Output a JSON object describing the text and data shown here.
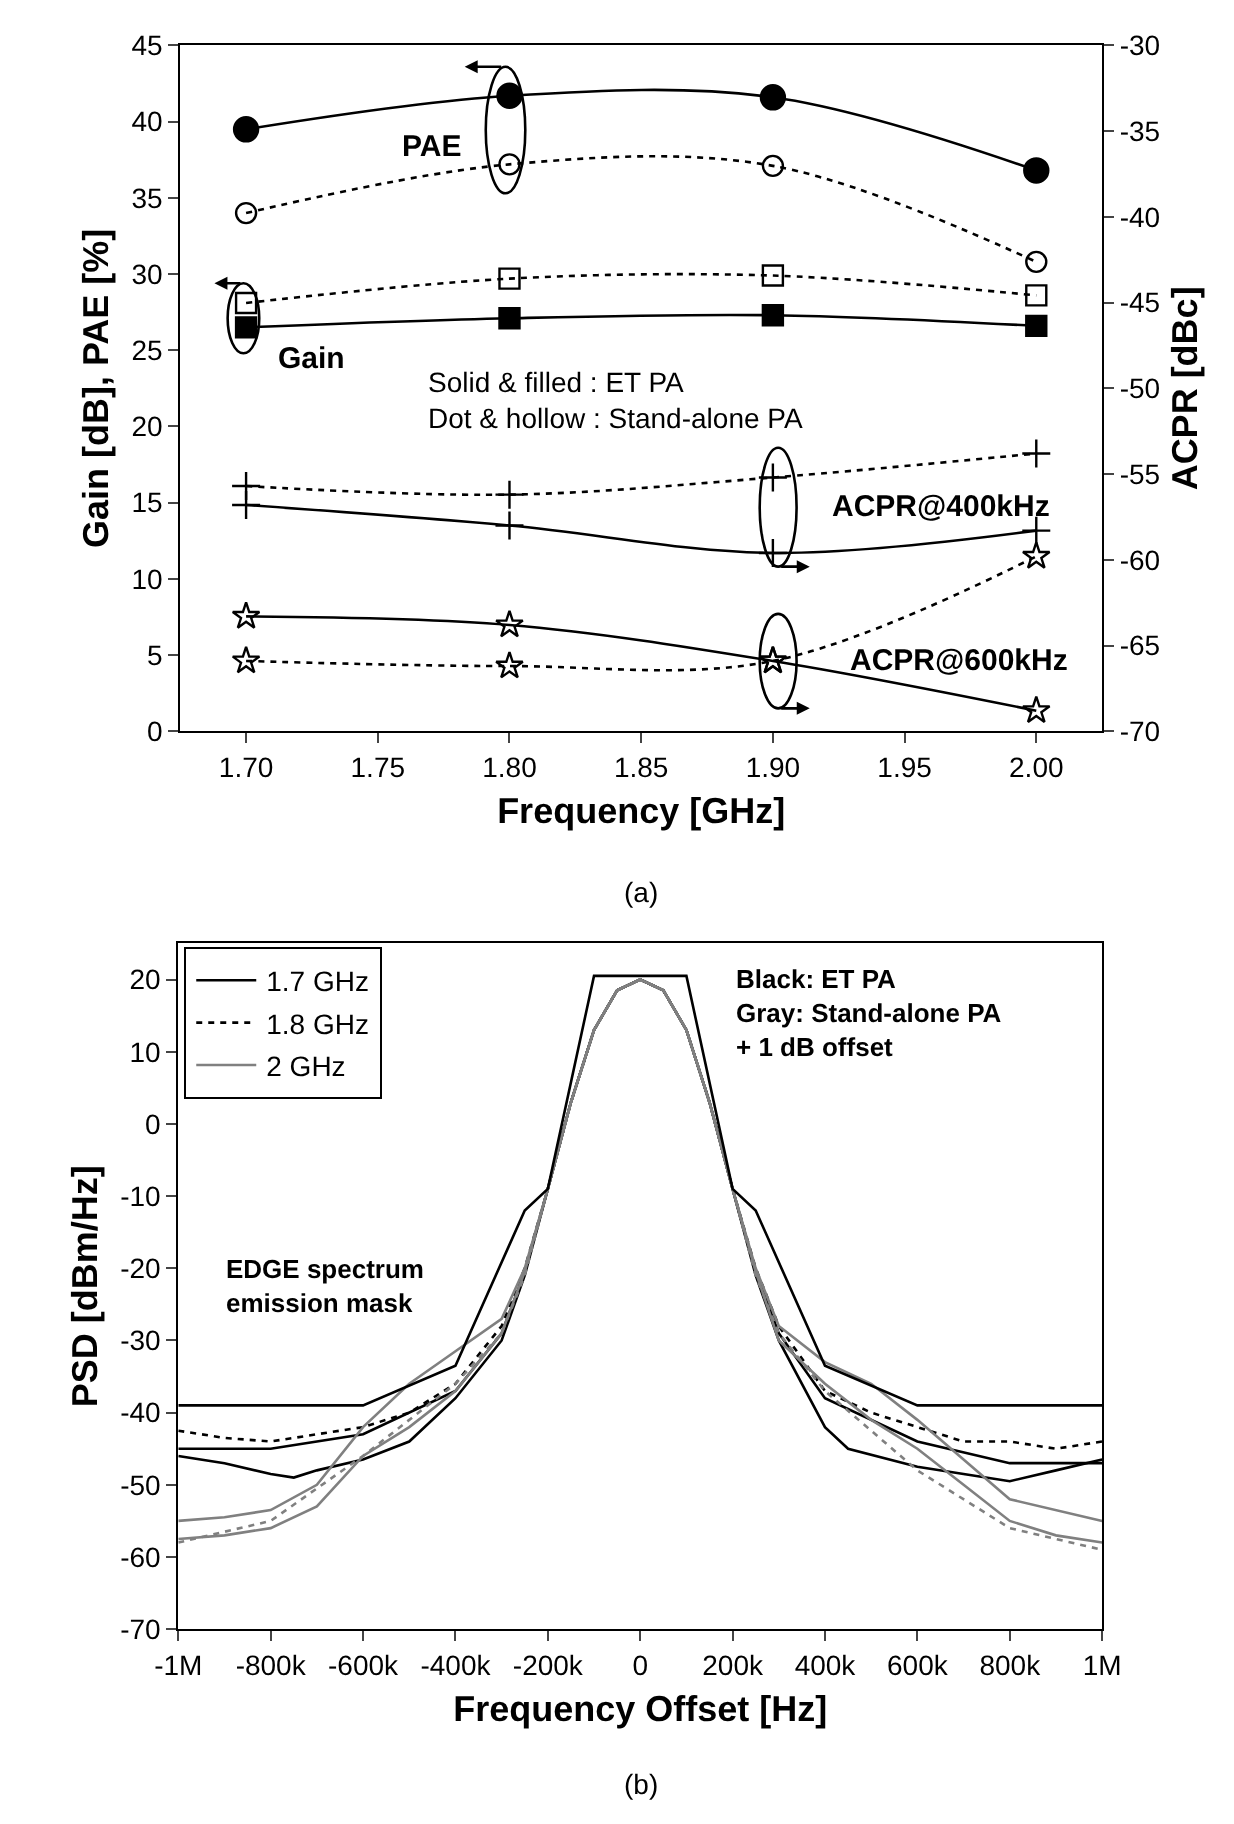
{
  "chart_data": [
    {
      "type": "line",
      "xlabel": "Frequency [GHz]",
      "ylabel": "Gain [dB], PAE [%]",
      "y2label": "ACPR [dBc]",
      "x": [
        1.7,
        1.8,
        1.9,
        2.0
      ],
      "xlim": [
        1.675,
        2.025
      ],
      "xticks": [
        {
          "value": 1.7,
          "label": "1.70"
        },
        {
          "value": 1.75,
          "label": "1.75"
        },
        {
          "value": 1.8,
          "label": "1.80"
        },
        {
          "value": 1.85,
          "label": "1.85"
        },
        {
          "value": 1.9,
          "label": "1.90"
        },
        {
          "value": 1.95,
          "label": "1.95"
        },
        {
          "value": 2.0,
          "label": "2.00"
        }
      ],
      "ylim": [
        0,
        45
      ],
      "yticks": [
        0,
        5,
        10,
        15,
        20,
        25,
        30,
        35,
        40,
        45
      ],
      "y2lim": [
        -70,
        -30
      ],
      "y2ticks": [
        -70,
        -65,
        -60,
        -55,
        -50,
        -45,
        -40,
        -35,
        -30
      ],
      "legend": false,
      "series": [
        {
          "color": "#000000",
          "values": [
            39.5,
            41.7,
            41.6,
            36.8
          ],
          "marker": "circle",
          "line_style": "solid"
        },
        {
          "color": "#000000",
          "values": [
            34.0,
            37.2,
            37.1,
            30.8
          ],
          "marker": "circle",
          "line_style": "dotted"
        },
        {
          "color": "#000000",
          "values": [
            28.1,
            29.7,
            29.9,
            28.6
          ],
          "marker": "square",
          "line_style": "dotted"
        },
        {
          "color": "#000000",
          "values": [
            26.5,
            27.1,
            27.3,
            26.6
          ],
          "marker": "square",
          "line_style": "solid"
        },
        {
          "color": "#000000",
          "values": [
            -55.7,
            -56.2,
            -55.2,
            -53.8
          ],
          "marker": "cross",
          "line_style": "dotted",
          "axis": "y2"
        },
        {
          "color": "#000000",
          "values": [
            -56.8,
            -58.0,
            -59.6,
            -58.3
          ],
          "marker": "cross",
          "line_style": "solid",
          "axis": "y2"
        },
        {
          "color": "#000000",
          "values": [
            -63.3,
            -63.8,
            -65.9,
            -68.8
          ],
          "marker": "star",
          "line_style": "solid",
          "axis": "y2"
        },
        {
          "color": "#000000",
          "values": [
            -65.9,
            -66.2,
            -65.9,
            -59.8
          ],
          "marker": "star",
          "line_style": "dotted",
          "axis": "y2"
        }
      ],
      "annotations": [
        "PAE",
        "Gain",
        "Solid & filled : ET PA\nDot & hollow : Stand-alone PA",
        "ACPR@400kHz",
        "ACPR@600kHz",
        "(a)"
      ]
    },
    {
      "type": "line",
      "xlabel": "Frequency Offset [Hz]",
      "ylabel": "PSD [dBm/Hz]",
      "xlim": [
        -1000000,
        1000000
      ],
      "xticks": [
        {
          "value": -1000000,
          "label": "-1M"
        },
        {
          "value": -800000,
          "label": "-800k"
        },
        {
          "value": -600000,
          "label": "-600k"
        },
        {
          "value": -400000,
          "label": "-400k"
        },
        {
          "value": -200000,
          "label": "-200k"
        },
        0,
        {
          "value": 200000,
          "label": "200k"
        },
        {
          "value": 400000,
          "label": "400k"
        },
        {
          "value": 600000,
          "label": "600k"
        },
        {
          "value": 800000,
          "label": "800k"
        },
        {
          "value": 1000000,
          "label": "1M"
        }
      ],
      "ylim": [
        -70,
        25
      ],
      "yticks": [
        -70,
        -60,
        -50,
        -40,
        -30,
        -20,
        -10,
        0,
        10,
        20
      ],
      "legend": "top left",
      "marker": "none",
      "series": [
        {
          "color": "#000000",
          "line_style": "solid",
          "x": [
            -1000000,
            -900000,
            -800000,
            -750000,
            -700000,
            -600000,
            -500000,
            -400000,
            -300000,
            -250000,
            -200000,
            -150000,
            -100000,
            -50000,
            0,
            50000,
            100000,
            150000,
            200000,
            250000,
            300000,
            400000,
            450000,
            600000,
            700000,
            800000,
            900000,
            1000000
          ],
          "values": [
            -46,
            -47,
            -48.5,
            -49,
            -48,
            -46.5,
            -44,
            -38,
            -30,
            -21,
            -9,
            3,
            13,
            18.5,
            20,
            18.5,
            13,
            3,
            -9,
            -21,
            -30,
            -42,
            -45,
            -47.5,
            -48.5,
            -49.5,
            -48,
            -46.5
          ]
        },
        {
          "name": "1.7 GHz",
          "color": "#000000",
          "line_style": "solid",
          "x": [
            -1000000,
            -800000,
            -600000,
            -400000,
            -300000,
            -250000,
            -200000,
            -150000,
            -100000,
            -50000,
            0,
            50000,
            100000,
            150000,
            200000,
            250000,
            300000,
            400000,
            600000,
            800000,
            1000000
          ],
          "values": [
            -45,
            -45,
            -43,
            -37,
            -29,
            -20.5,
            -9,
            3,
            13,
            18.5,
            20,
            18.5,
            13,
            3,
            -9,
            -20.5,
            -29,
            -38,
            -44,
            -47,
            -47
          ]
        },
        {
          "name": "1.8 GHz",
          "color": "#000000",
          "line_style": "dotted",
          "x": [
            -1000000,
            -900000,
            -800000,
            -700000,
            -600000,
            -500000,
            -400000,
            -300000,
            -250000,
            -200000,
            -150000,
            -100000,
            -50000,
            0,
            50000,
            100000,
            150000,
            200000,
            250000,
            300000,
            400000,
            500000,
            600000,
            700000,
            800000,
            900000,
            1000000
          ],
          "values": [
            -42.5,
            -43.5,
            -44,
            -43,
            -42,
            -40,
            -36,
            -28,
            -20,
            -9,
            3,
            13,
            18.5,
            20,
            18.5,
            13,
            3,
            -9,
            -20,
            -28,
            -37,
            -40,
            -42,
            -44,
            -44,
            -45,
            -44
          ]
        },
        {
          "color": "#808080",
          "line_style": "solid",
          "x": [
            -1000000,
            -900000,
            -800000,
            -700000,
            -600000,
            -500000,
            -400000,
            -300000,
            -250000,
            -200000,
            -150000,
            -100000,
            -50000,
            0,
            50000,
            100000,
            150000,
            200000,
            250000,
            300000,
            400000,
            500000,
            600000,
            700000,
            800000,
            900000,
            1000000
          ],
          "values": [
            -57.5,
            -57,
            -56,
            -53,
            -46,
            -42,
            -37,
            -29,
            -20.5,
            -9,
            3,
            13,
            18.5,
            20,
            18.5,
            13,
            3,
            -9,
            -20.5,
            -30,
            -36,
            -41,
            -45,
            -50,
            -55,
            -57,
            -58
          ]
        },
        {
          "name": "2 GHz",
          "color": "#808080",
          "line_style": "solid",
          "x": [
            -1000000,
            -900000,
            -800000,
            -700000,
            -600000,
            -500000,
            -400000,
            -300000,
            -250000,
            -200000,
            -150000,
            -100000,
            -50000,
            0,
            50000,
            100000,
            150000,
            200000,
            250000,
            300000,
            400000,
            500000,
            600000,
            800000,
            1000000
          ],
          "values": [
            -55,
            -54.5,
            -53.5,
            -50,
            -42,
            -36,
            -31.5,
            -27,
            -20,
            -9,
            3,
            13,
            18.5,
            20,
            18.5,
            13,
            3,
            -9,
            -20,
            -28,
            -33,
            -36,
            -41,
            -52,
            -55
          ]
        },
        {
          "color": "#808080",
          "line_style": "dotted",
          "x": [
            -1000000,
            -800000,
            -600000,
            -400000,
            -300000,
            -250000,
            -200000,
            -150000,
            -100000,
            -50000,
            0,
            50000,
            100000,
            150000,
            200000,
            250000,
            300000,
            400000,
            600000,
            800000,
            1000000
          ],
          "values": [
            -58,
            -55,
            -46,
            -36,
            -29,
            -21,
            -9,
            3,
            13,
            18.5,
            20,
            18.5,
            13,
            3,
            -9,
            -21,
            -29,
            -37,
            -48,
            -56,
            -59
          ]
        },
        {
          "color": "#000000",
          "line_style": "solid",
          "x": [
            -1000000,
            -600000,
            -400000,
            -250000,
            -200000,
            -100000,
            100000,
            200000,
            250000,
            400000,
            600000,
            1000000
          ],
          "values": [
            -39,
            -39,
            -33.5,
            -12,
            -9,
            20.5,
            20.5,
            -9,
            -12,
            -33.5,
            -39,
            -39
          ]
        }
      ],
      "annotations": [
        "Black: ET PA\nGray: Stand-alone PA\n+ 1 dB offset",
        "EDGE spectrum\nemission mask",
        "(b)"
      ]
    }
  ]
}
